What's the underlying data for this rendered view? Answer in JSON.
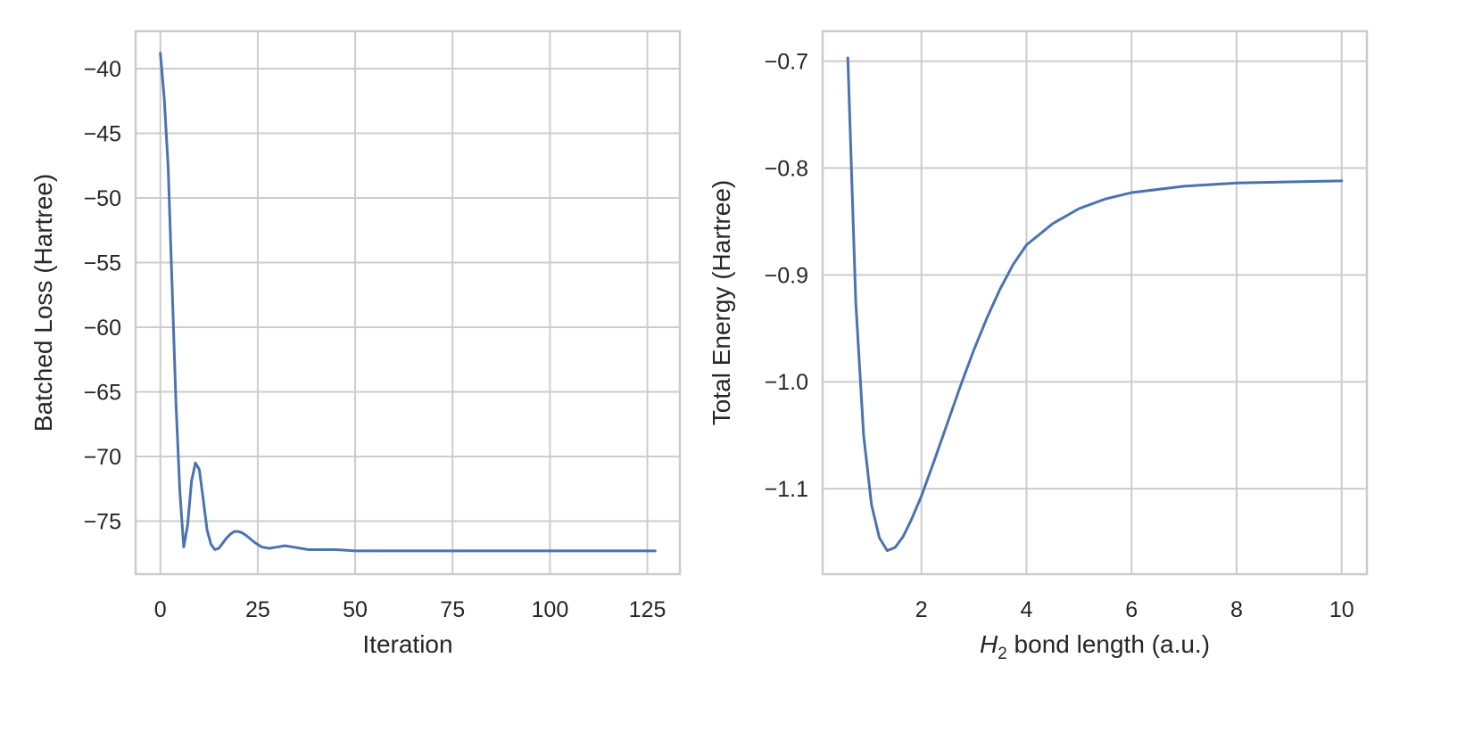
{
  "colors": {
    "series": "#4c72b0",
    "grid": "#cccccc",
    "text": "#262626"
  },
  "chart_data": [
    {
      "type": "line",
      "title": "",
      "xlabel": "Iteration",
      "ylabel": "Batched Loss (Hartree)",
      "xlim": [
        -6.35,
        133.35
      ],
      "ylim": [
        -79.1,
        -37.1
      ],
      "grid": true,
      "x_ticks": [
        0,
        25,
        50,
        75,
        100,
        125
      ],
      "x_tick_labels": [
        "0",
        "25",
        "50",
        "75",
        "100",
        "125"
      ],
      "y_ticks": [
        -40,
        -45,
        -50,
        -55,
        -60,
        -65,
        -70,
        -75
      ],
      "y_tick_labels": [
        "−40",
        "−45",
        "−50",
        "−55",
        "−60",
        "−65",
        "−70",
        "−75"
      ],
      "series": [
        {
          "x": [
            0,
            1,
            2,
            3,
            4,
            5,
            6,
            7,
            8,
            9,
            10,
            11,
            12,
            13,
            14,
            15,
            16,
            17,
            18,
            19,
            20,
            21,
            22,
            24,
            26,
            28,
            30,
            32,
            34,
            36,
            38,
            40,
            45,
            50,
            60,
            70,
            80,
            90,
            100,
            110,
            120,
            127
          ],
          "y": [
            -38.8,
            -42.3,
            -47.6,
            -56.7,
            -65.8,
            -72.7,
            -77.0,
            -75.3,
            -71.9,
            -70.5,
            -71.0,
            -73.3,
            -75.7,
            -76.8,
            -77.2,
            -77.1,
            -76.7,
            -76.3,
            -76.0,
            -75.8,
            -75.8,
            -75.9,
            -76.1,
            -76.6,
            -77.0,
            -77.1,
            -77.0,
            -76.9,
            -77.0,
            -77.1,
            -77.2,
            -77.2,
            -77.2,
            -77.3,
            -77.3,
            -77.3,
            -77.3,
            -77.3,
            -77.3,
            -77.3,
            -77.3,
            -77.3
          ]
        }
      ]
    },
    {
      "type": "line",
      "title": "",
      "xlabel_prefix": "H",
      "xlabel_sub": "2",
      "xlabel_suffix": " bond length (a.u.)",
      "ylabel": "Total Energy (Hartree)",
      "xlim": [
        0.12,
        10.48
      ],
      "ylim": [
        -1.18,
        -0.672
      ],
      "grid": true,
      "x_ticks": [
        2,
        4,
        6,
        8,
        10
      ],
      "x_tick_labels": [
        "2",
        "4",
        "6",
        "8",
        "10"
      ],
      "y_ticks": [
        -0.7,
        -0.8,
        -0.9,
        -1.0,
        -1.1
      ],
      "y_tick_labels": [
        "−0.7",
        "−0.8",
        "−0.9",
        "−1.0",
        "−1.1"
      ],
      "series": [
        {
          "x": [
            0.6,
            0.75,
            0.9,
            1.05,
            1.2,
            1.35,
            1.5,
            1.65,
            1.8,
            2.0,
            2.25,
            2.5,
            2.75,
            3.0,
            3.25,
            3.5,
            3.75,
            4.0,
            4.5,
            5.0,
            5.5,
            6.0,
            7.0,
            8.0,
            9.0,
            10.0
          ],
          "y": [
            -0.697,
            -0.925,
            -1.05,
            -1.115,
            -1.146,
            -1.158,
            -1.155,
            -1.145,
            -1.13,
            -1.107,
            -1.073,
            -1.038,
            -1.003,
            -0.97,
            -0.94,
            -0.913,
            -0.89,
            -0.872,
            -0.852,
            -0.838,
            -0.829,
            -0.823,
            -0.817,
            -0.814,
            -0.813,
            -0.812
          ]
        }
      ]
    }
  ]
}
